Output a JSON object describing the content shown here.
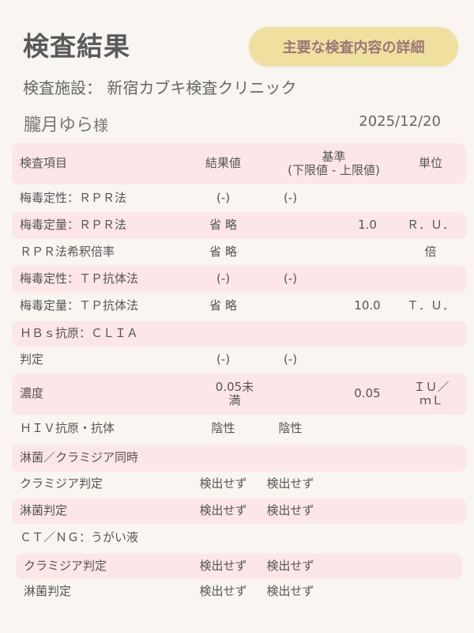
{
  "header": {
    "title": "検査結果",
    "detail_button": "主要な検査内容の詳細",
    "facility_label": "検査施設：",
    "facility_name": "新宿カブキ検査クリニック",
    "patient_name": "朧月ゆら",
    "patient_suffix": "様",
    "date": "2025/12/20"
  },
  "colors": {
    "stripe": "#fde6e7",
    "button": "#f0e0a0",
    "button_text": "#9a7878",
    "background": "#f9f6f2"
  },
  "table": {
    "columns": {
      "item": "検査項目",
      "result": "結果値",
      "standard": "基準",
      "standard_sub": "(下限値 - 上限値)",
      "unit": "単位"
    },
    "rows": [
      {
        "name": "梅毒定性：ＲＰＲ法",
        "result": "(-)",
        "lower": "(-)",
        "upper": "",
        "unit": "",
        "pink": false
      },
      {
        "name": "梅毒定量：ＲＰＲ法",
        "result": "省 略",
        "lower": "",
        "upper": "1.0",
        "unit": "Ｒ．Ｕ．",
        "pink": true
      },
      {
        "name": "ＲＰＲ法希釈倍率",
        "result": "省 略",
        "lower": "",
        "upper": "",
        "unit": "倍",
        "pink": false
      },
      {
        "name": "梅毒定性：ＴＰ抗体法",
        "result": "(-)",
        "lower": "(-)",
        "upper": "",
        "unit": "",
        "pink": true
      },
      {
        "name": "梅毒定量：ＴＰ抗体法",
        "result": "省 略",
        "lower": "",
        "upper": "10.0",
        "unit": "Ｔ．Ｕ．",
        "pink": false
      },
      {
        "name": "ＨＢｓ抗原：ＣＬＩＡ",
        "result": "",
        "lower": "",
        "upper": "",
        "unit": "",
        "pink": true
      },
      {
        "name": "判定",
        "result": "(-)",
        "lower": "(-)",
        "upper": "",
        "unit": "",
        "pink": false
      },
      {
        "name": "濃度",
        "result": "0.05未満",
        "lower": "",
        "upper": "0.05",
        "unit": "ＩＵ／ｍＬ",
        "pink": true
      },
      {
        "name": "ＨＩＶ抗原・抗体",
        "result": "陰性",
        "lower": "陰性",
        "upper": "",
        "unit": "",
        "pink": false
      },
      {
        "name": "淋菌／クラミジア同時",
        "result": "",
        "lower": "",
        "upper": "",
        "unit": "",
        "pink": true
      },
      {
        "name": "クラミジア判定",
        "result": "検出せず",
        "lower": "検出せず",
        "upper": "",
        "unit": "",
        "pink": false
      },
      {
        "name": "淋菌判定",
        "result": "検出せず",
        "lower": "検出せず",
        "upper": "",
        "unit": "",
        "pink": true
      },
      {
        "name": "ＣＴ／ＮＧ：うがい液",
        "result": "",
        "lower": "",
        "upper": "",
        "unit": "",
        "pink": false
      },
      {
        "name": "クラミジア判定",
        "result": "検出せず",
        "lower": "検出せず",
        "upper": "",
        "unit": "",
        "pink": true
      },
      {
        "name": "淋菌判定",
        "result": "検出せず",
        "lower": "検出せず",
        "upper": "",
        "unit": "",
        "pink": false
      }
    ]
  }
}
